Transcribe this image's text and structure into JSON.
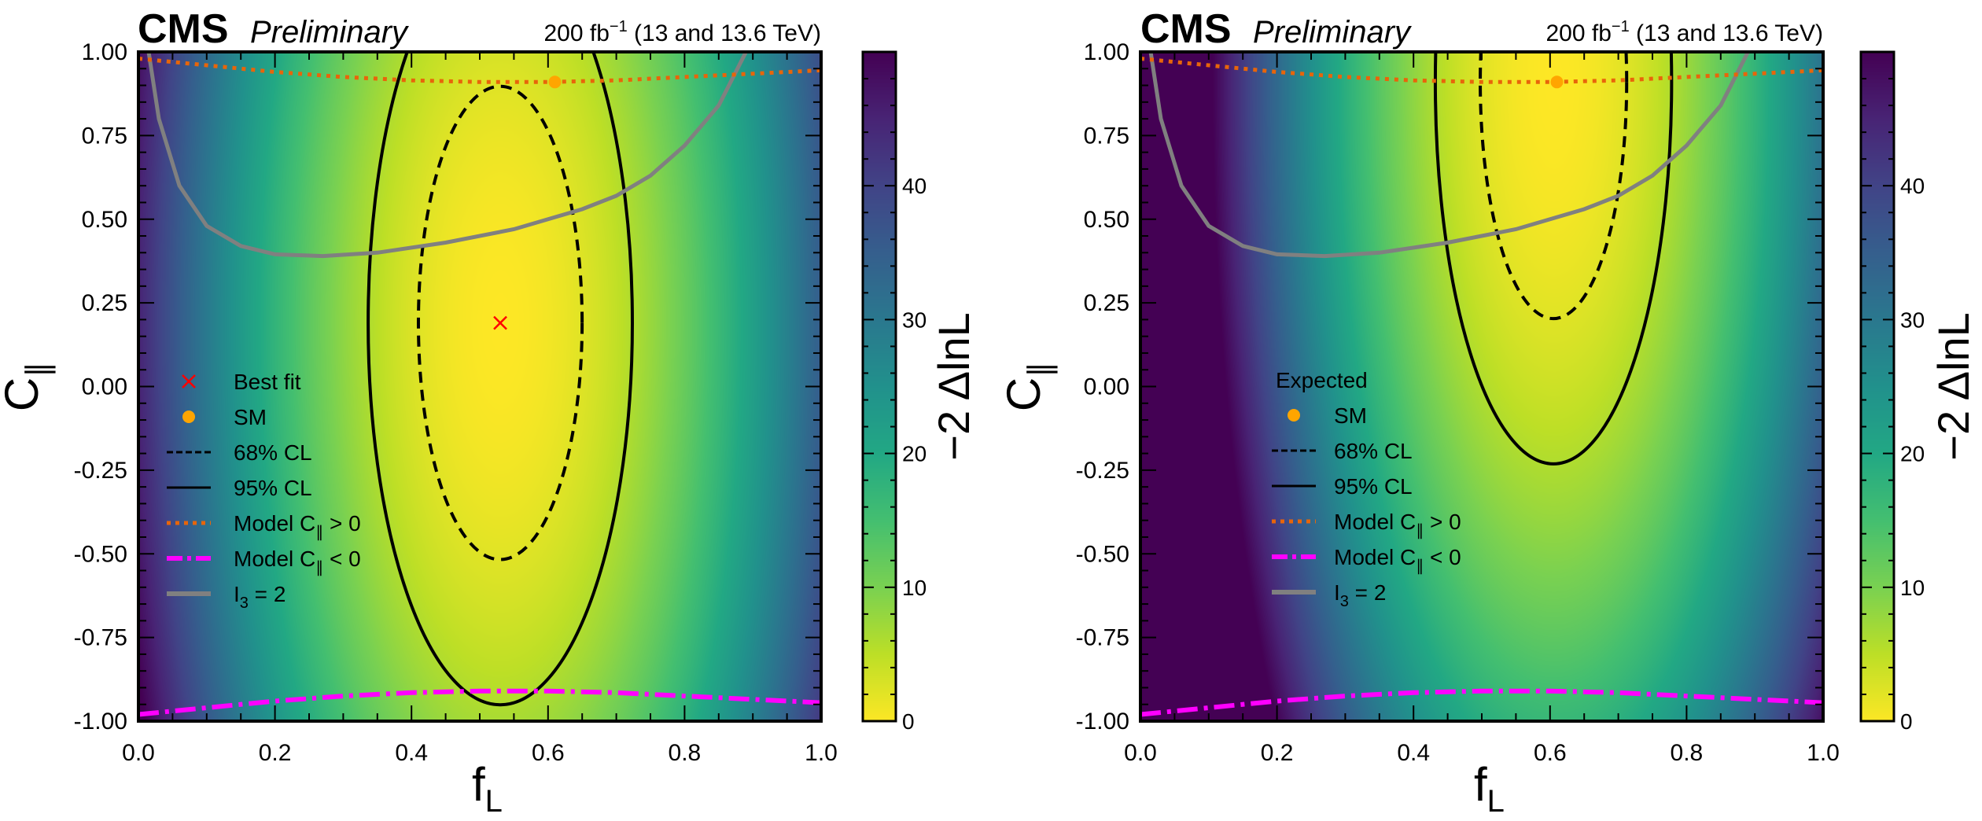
{
  "chart_data": [
    {
      "type": "heatmap",
      "experiment": "CMS",
      "status": "Preliminary",
      "lumi_label": "200 fb",
      "lumi_exp": "−1",
      "energy_label": "(13 and 13.6 TeV)",
      "xlabel": "f",
      "xlabel_sub": "L",
      "ylabel": "C",
      "ylabel_sub": "∥",
      "colorbar_label": "−2 ΔlnL",
      "xlim": [
        0,
        1
      ],
      "ylim": [
        -1,
        1
      ],
      "zlim": [
        0,
        50
      ],
      "xticks": [
        "0.0",
        "0.2",
        "0.4",
        "0.6",
        "0.8",
        "1.0"
      ],
      "yticks": [
        "1.00",
        "0.75",
        "0.50",
        "0.25",
        "0.00",
        "-0.25",
        "-0.50",
        "-0.75",
        "-1.00"
      ],
      "zticks": [
        "0",
        "10",
        "20",
        "30",
        "40"
      ],
      "surface_model": {
        "f0": 0.53,
        "c0": 0.19,
        "a_f": 160,
        "b_c": 4.6
      },
      "best_fit": {
        "f": 0.53,
        "c": 0.19
      },
      "sm_point": {
        "f": 0.61,
        "c": 0.91
      },
      "legend": {
        "header": "",
        "entries": [
          {
            "key": "best_fit",
            "label": "Best fit"
          },
          {
            "key": "sm",
            "label": "SM"
          },
          {
            "key": "cl68",
            "label": "68% CL"
          },
          {
            "key": "cl95",
            "label": "95% CL"
          },
          {
            "key": "model_pos",
            "label": "Model C",
            "sub": "∥",
            "suffix": " > 0"
          },
          {
            "key": "model_neg",
            "label": "Model C",
            "sub": "∥",
            "suffix": " < 0"
          },
          {
            "key": "i3",
            "label": "I",
            "sub": "3",
            "suffix": " = 2"
          }
        ]
      },
      "contours": {
        "cl68": 2.3,
        "cl95": 5.99
      }
    },
    {
      "type": "heatmap",
      "experiment": "CMS",
      "status": "Preliminary",
      "lumi_label": "200 fb",
      "lumi_exp": "−1",
      "energy_label": "(13 and 13.6 TeV)",
      "xlabel": "f",
      "xlabel_sub": "L",
      "ylabel": "C",
      "ylabel_sub": "∥",
      "colorbar_label": "−2 ΔlnL",
      "xlim": [
        0,
        1
      ],
      "ylim": [
        -1,
        1
      ],
      "zlim": [
        0,
        50
      ],
      "xticks": [
        "0.0",
        "0.2",
        "0.4",
        "0.6",
        "0.8",
        "1.0"
      ],
      "yticks": [
        "1.00",
        "0.75",
        "0.50",
        "0.25",
        "0.00",
        "-0.25",
        "-0.50",
        "-0.75",
        "-1.00"
      ],
      "zticks": [
        "0",
        "10",
        "20",
        "30",
        "40"
      ],
      "surface_model": {
        "f0": 0.605,
        "c0": 0.91,
        "a_f": 200,
        "b_c": 4.6
      },
      "best_fit": null,
      "sm_point": {
        "f": 0.61,
        "c": 0.91
      },
      "legend": {
        "header": "Expected",
        "entries": [
          {
            "key": "sm",
            "label": "SM"
          },
          {
            "key": "cl68",
            "label": "68% CL"
          },
          {
            "key": "cl95",
            "label": "95% CL"
          },
          {
            "key": "model_pos",
            "label": "Model C",
            "sub": "∥",
            "suffix": " > 0"
          },
          {
            "key": "model_neg",
            "label": "Model C",
            "sub": "∥",
            "suffix": " < 0"
          },
          {
            "key": "i3",
            "label": "I",
            "sub": "3",
            "suffix": " = 2"
          }
        ]
      },
      "contours": {
        "cl68": 2.3,
        "cl95": 5.99
      }
    }
  ],
  "curves": {
    "model_pos": [
      [
        0,
        0.98
      ],
      [
        0.1,
        0.96
      ],
      [
        0.2,
        0.94
      ],
      [
        0.3,
        0.925
      ],
      [
        0.4,
        0.915
      ],
      [
        0.5,
        0.91
      ],
      [
        0.6,
        0.91
      ],
      [
        0.7,
        0.915
      ],
      [
        0.8,
        0.925
      ],
      [
        0.9,
        0.935
      ],
      [
        1.0,
        0.945
      ]
    ],
    "model_neg": [
      [
        0,
        -0.98
      ],
      [
        0.1,
        -0.96
      ],
      [
        0.2,
        -0.94
      ],
      [
        0.3,
        -0.925
      ],
      [
        0.4,
        -0.915
      ],
      [
        0.5,
        -0.91
      ],
      [
        0.6,
        -0.91
      ],
      [
        0.7,
        -0.915
      ],
      [
        0.8,
        -0.925
      ],
      [
        0.9,
        -0.935
      ],
      [
        1.0,
        -0.945
      ]
    ],
    "i3": [
      [
        0.015,
        1.0
      ],
      [
        0.03,
        0.8
      ],
      [
        0.06,
        0.6
      ],
      [
        0.1,
        0.48
      ],
      [
        0.15,
        0.42
      ],
      [
        0.2,
        0.395
      ],
      [
        0.27,
        0.39
      ],
      [
        0.35,
        0.4
      ],
      [
        0.45,
        0.43
      ],
      [
        0.55,
        0.47
      ],
      [
        0.65,
        0.53
      ],
      [
        0.7,
        0.57
      ],
      [
        0.75,
        0.63
      ],
      [
        0.8,
        0.72
      ],
      [
        0.85,
        0.84
      ],
      [
        0.89,
        1.0
      ]
    ]
  },
  "colors": {
    "best_fit": "#ff0000",
    "sm": "#ffa500",
    "model_pos": "#e8650a",
    "model_neg": "#ff00ff",
    "i3": "#808080",
    "contour": "#000000"
  }
}
